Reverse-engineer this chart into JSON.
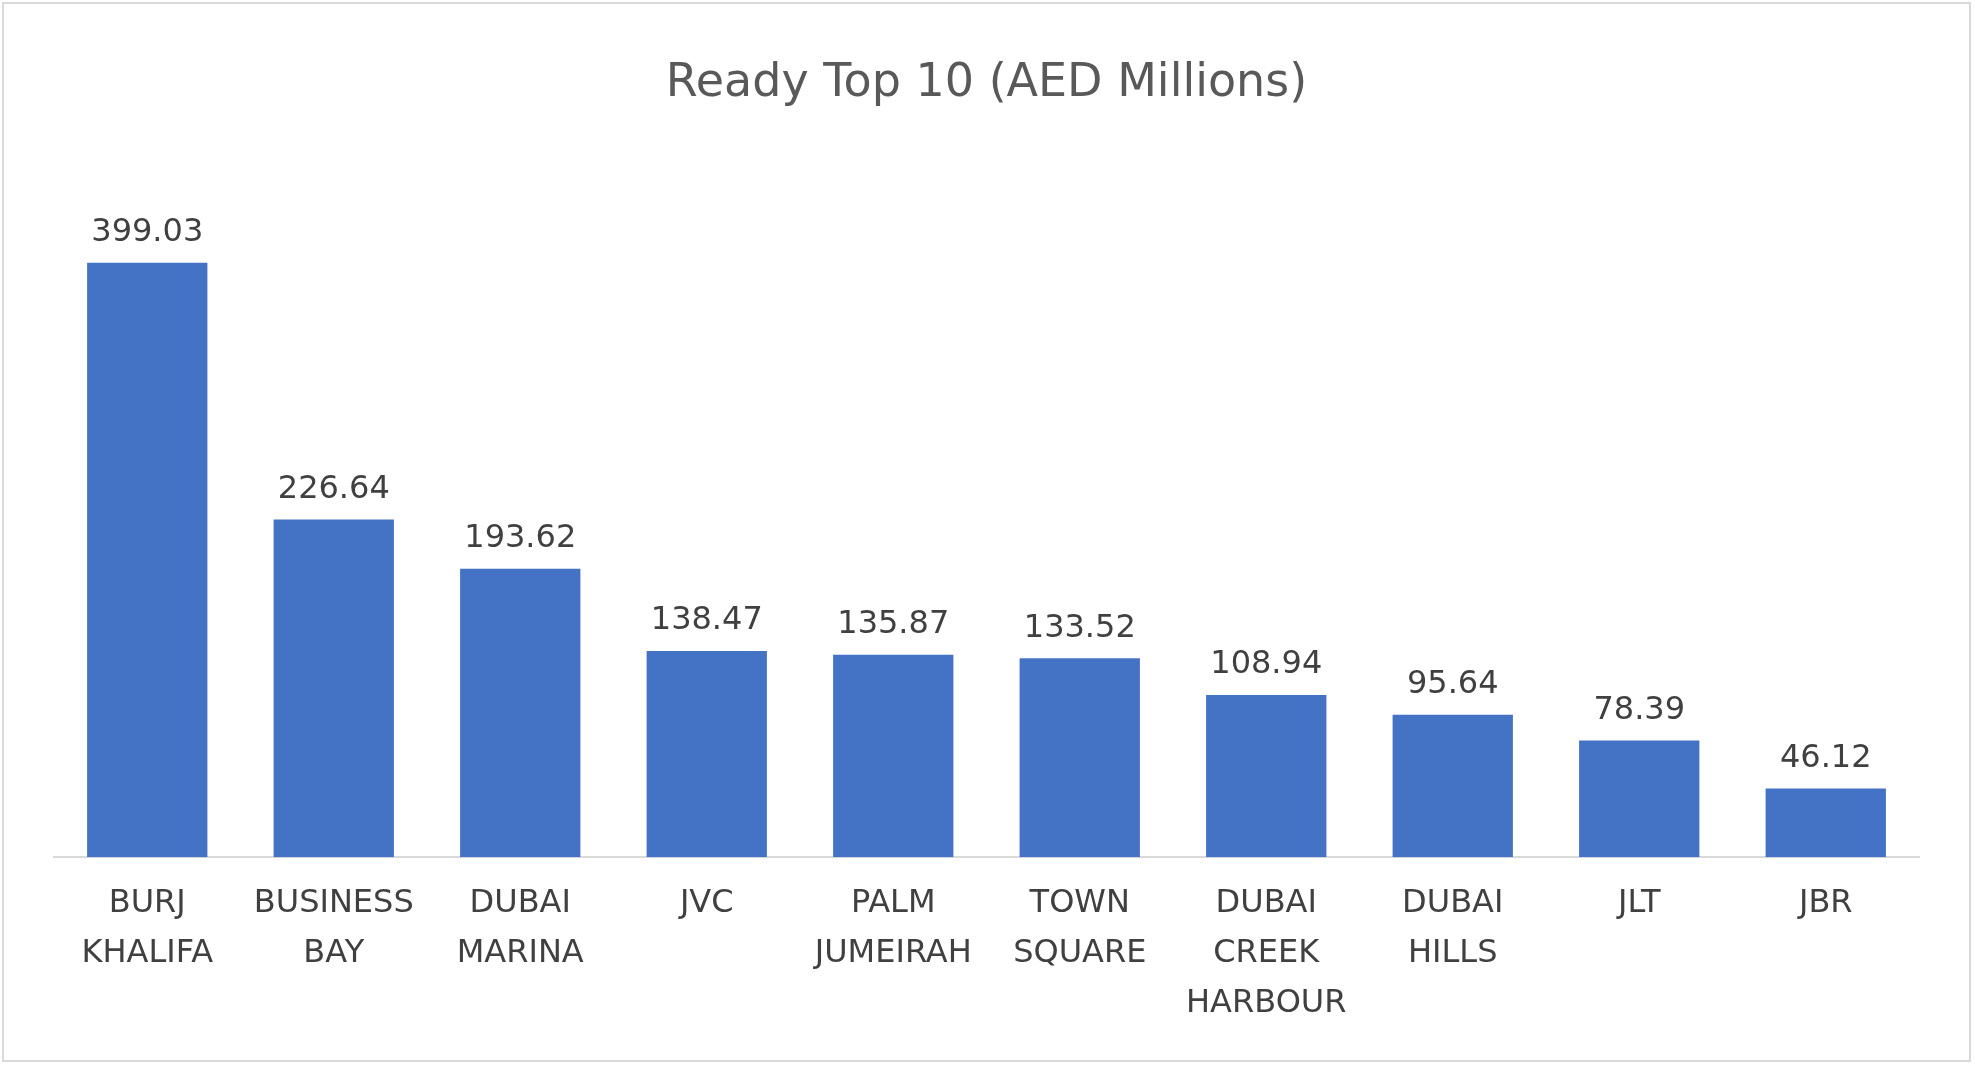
{
  "chart_data": {
    "type": "bar",
    "title": "Ready Top 10 (AED Millions)",
    "categories": [
      "BURJ KHALIFA",
      "BUSINESS BAY",
      "DUBAI MARINA",
      "JVC",
      "PALM JUMEIRAH",
      "TOWN SQUARE",
      "DUBAI CREEK HARBOUR",
      "DUBAI HILLS",
      "JLT",
      "JBR"
    ],
    "values": [
      399.03,
      226.64,
      193.62,
      138.47,
      135.87,
      133.52,
      108.94,
      95.64,
      78.39,
      46.12
    ],
    "color": "#4472c4",
    "data_labels": true,
    "grid": false,
    "legend": false
  }
}
